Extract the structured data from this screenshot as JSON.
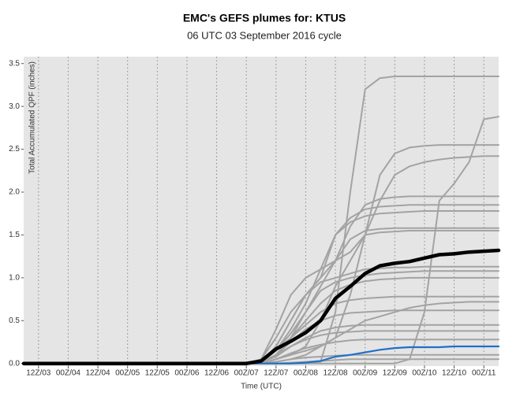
{
  "chart_data": {
    "type": "line",
    "title": "EMC's GEFS plumes for: KTUS",
    "subtitle": "06 UTC 03 September 2016 cycle",
    "x_label": "Time (UTC)",
    "y_label": "Total Accumulated QPF (inches)",
    "x": [
      0,
      90,
      96,
      102,
      108,
      114,
      120,
      126,
      132,
      138,
      144,
      150,
      156,
      162,
      168,
      174,
      180,
      186,
      192
    ],
    "xlim": [
      0,
      192
    ],
    "xticks": [
      {
        "value": 6,
        "label": "12Z/03"
      },
      {
        "value": 18,
        "label": "00Z/04"
      },
      {
        "value": 30,
        "label": "12Z/04"
      },
      {
        "value": 42,
        "label": "00Z/05"
      },
      {
        "value": 54,
        "label": "12Z/05"
      },
      {
        "value": 66,
        "label": "00Z/06"
      },
      {
        "value": 78,
        "label": "12Z/06"
      },
      {
        "value": 90,
        "label": "00Z/07"
      },
      {
        "value": 102,
        "label": "12Z/07"
      },
      {
        "value": 114,
        "label": "00Z/08"
      },
      {
        "value": 126,
        "label": "12Z/08"
      },
      {
        "value": 138,
        "label": "00Z/09"
      },
      {
        "value": 150,
        "label": "12Z/09"
      },
      {
        "value": 162,
        "label": "00Z/10"
      },
      {
        "value": 174,
        "label": "12Z/10"
      },
      {
        "value": 186,
        "label": "00Z/11"
      }
    ],
    "ylim": [
      -0.03,
      3.58
    ],
    "yticks": [
      {
        "value": 0,
        "label": "0.0"
      },
      {
        "value": 0.5,
        "label": "0.5"
      },
      {
        "value": 1,
        "label": "1.0"
      },
      {
        "value": 1.5,
        "label": "1.5"
      },
      {
        "value": 2,
        "label": "2.0"
      },
      {
        "value": 2.5,
        "label": "2.5"
      },
      {
        "value": 3,
        "label": "3.0"
      },
      {
        "value": 3.5,
        "label": "3.5"
      }
    ],
    "vertical_grid": true,
    "series": [
      {
        "color": "#a3a3a3",
        "values": [
          0,
          0,
          0,
          0,
          0,
          0,
          0.02,
          0.6,
          2.0,
          3.2,
          3.33,
          3.35,
          3.35,
          3.35,
          3.35,
          3.35,
          3.35,
          3.35,
          3.35
        ]
      },
      {
        "color": "#a3a3a3",
        "values": [
          0,
          0,
          0,
          0,
          0,
          0,
          0,
          0,
          0,
          0,
          0,
          0,
          0.05,
          0.6,
          1.9,
          2.1,
          2.35,
          2.85,
          2.88
        ]
      },
      {
        "color": "#a3a3a3",
        "values": [
          0,
          0,
          0,
          0.02,
          0.05,
          0.1,
          0.2,
          0.3,
          0.8,
          1.5,
          2.2,
          2.45,
          2.52,
          2.54,
          2.55,
          2.55,
          2.55,
          2.55,
          2.55
        ]
      },
      {
        "color": "#a3a3a3",
        "values": [
          0,
          0,
          0,
          0.05,
          0.1,
          0.2,
          0.5,
          0.9,
          1.2,
          1.5,
          1.9,
          2.2,
          2.3,
          2.35,
          2.38,
          2.4,
          2.41,
          2.42,
          2.42
        ]
      },
      {
        "color": "#a3a3a3",
        "values": [
          0,
          0,
          0.02,
          0.2,
          0.5,
          0.8,
          1.0,
          1.2,
          1.6,
          1.85,
          1.92,
          1.94,
          1.95,
          1.95,
          1.95,
          1.95,
          1.95,
          1.95,
          1.95
        ]
      },
      {
        "color": "#a3a3a3",
        "values": [
          0,
          0,
          0.05,
          0.3,
          0.6,
          0.8,
          1.0,
          1.5,
          1.7,
          1.8,
          1.83,
          1.84,
          1.85,
          1.85,
          1.85,
          1.85,
          1.85,
          1.85,
          1.85
        ]
      },
      {
        "color": "#a3a3a3",
        "values": [
          0,
          0,
          0.03,
          0.15,
          0.4,
          0.7,
          1.1,
          1.5,
          1.65,
          1.72,
          1.75,
          1.76,
          1.77,
          1.78,
          1.78,
          1.78,
          1.78,
          1.78,
          1.78
        ]
      },
      {
        "color": "#a3a3a3",
        "values": [
          0,
          0,
          0.02,
          0.1,
          0.3,
          0.6,
          0.9,
          1.2,
          1.45,
          1.55,
          1.57,
          1.58,
          1.58,
          1.58,
          1.58,
          1.58,
          1.58,
          1.58,
          1.58
        ]
      },
      {
        "color": "#a3a3a3",
        "values": [
          0,
          0,
          0.05,
          0.4,
          0.8,
          1.0,
          1.1,
          1.2,
          1.3,
          1.5,
          1.53,
          1.54,
          1.55,
          1.55,
          1.55,
          1.55,
          1.55,
          1.55,
          1.55
        ]
      },
      {
        "color": "#a3a3a3",
        "values": [
          0,
          0,
          0.02,
          0.2,
          0.5,
          0.8,
          0.95,
          1.0,
          1.05,
          1.1,
          1.11,
          1.12,
          1.12,
          1.13,
          1.13,
          1.13,
          1.13,
          1.13,
          1.13
        ]
      },
      {
        "color": "#a3a3a3",
        "values": [
          0,
          0,
          0.02,
          0.15,
          0.35,
          0.6,
          0.85,
          0.95,
          1.0,
          1.03,
          1.05,
          1.06,
          1.07,
          1.08,
          1.08,
          1.08,
          1.08,
          1.08,
          1.08
        ]
      },
      {
        "color": "#a3a3a3",
        "values": [
          0,
          0,
          0.01,
          0.1,
          0.3,
          0.5,
          0.7,
          0.85,
          0.92,
          0.96,
          0.98,
          0.99,
          1.0,
          1.0,
          1.0,
          1.0,
          1.0,
          1.0,
          1.0
        ]
      },
      {
        "color": "#a3a3a3",
        "values": [
          0,
          0,
          0.02,
          0.15,
          0.3,
          0.45,
          0.6,
          0.7,
          0.74,
          0.76,
          0.77,
          0.78,
          0.78,
          0.78,
          0.78,
          0.78,
          0.78,
          0.78,
          0.78
        ]
      },
      {
        "color": "#a3a3a3",
        "values": [
          0,
          0,
          0.01,
          0.1,
          0.25,
          0.4,
          0.5,
          0.56,
          0.59,
          0.6,
          0.61,
          0.62,
          0.62,
          0.62,
          0.62,
          0.62,
          0.62,
          0.62,
          0.62
        ]
      },
      {
        "color": "#a3a3a3",
        "values": [
          0,
          0,
          0.01,
          0.08,
          0.2,
          0.3,
          0.38,
          0.42,
          0.44,
          0.45,
          0.45,
          0.45,
          0.45,
          0.45,
          0.45,
          0.45,
          0.45,
          0.45,
          0.45
        ]
      },
      {
        "color": "#a3a3a3",
        "values": [
          0,
          0,
          0.02,
          0.1,
          0.2,
          0.28,
          0.33,
          0.36,
          0.37,
          0.38,
          0.38,
          0.38,
          0.38,
          0.38,
          0.38,
          0.38,
          0.38,
          0.38,
          0.38
        ]
      },
      {
        "color": "#a3a3a3",
        "values": [
          0,
          0,
          0,
          0.05,
          0.12,
          0.18,
          0.22,
          0.25,
          0.27,
          0.28,
          0.28,
          0.28,
          0.28,
          0.28,
          0.28,
          0.28,
          0.28,
          0.28,
          0.28
        ]
      },
      {
        "color": "#a3a3a3",
        "values": [
          0,
          0,
          0,
          0.02,
          0.05,
          0.07,
          0.08,
          0.09,
          0.1,
          0.1,
          0.1,
          0.1,
          0.1,
          0.1,
          0.1,
          0.1,
          0.1,
          0.1,
          0.1
        ]
      },
      {
        "color": "#a3a3a3",
        "values": [
          0,
          0,
          0,
          0,
          0.01,
          0.02,
          0.03,
          0.04,
          0.05,
          0.05,
          0.05,
          0.05,
          0.05,
          0.05,
          0.05,
          0.05,
          0.05,
          0.05,
          0.05
        ]
      },
      {
        "color": "#a3a3a3",
        "values": [
          0,
          0,
          0,
          0.05,
          0.1,
          0.15,
          0.2,
          0.3,
          0.4,
          0.5,
          0.55,
          0.6,
          0.65,
          0.68,
          0.7,
          0.71,
          0.72,
          0.72,
          0.72
        ]
      },
      {
        "color": "#1f6fc8",
        "values": [
          0,
          0,
          0,
          0,
          0,
          0.01,
          0.03,
          0.08,
          0.1,
          0.13,
          0.16,
          0.18,
          0.19,
          0.19,
          0.19,
          0.2,
          0.2,
          0.2,
          0.2
        ]
      },
      {
        "color": "#000000",
        "values": [
          0,
          0,
          0.03,
          0.17,
          0.26,
          0.36,
          0.5,
          0.76,
          0.9,
          1.05,
          1.14,
          1.17,
          1.19,
          1.23,
          1.27,
          1.28,
          1.3,
          1.31,
          1.32
        ]
      }
    ]
  }
}
